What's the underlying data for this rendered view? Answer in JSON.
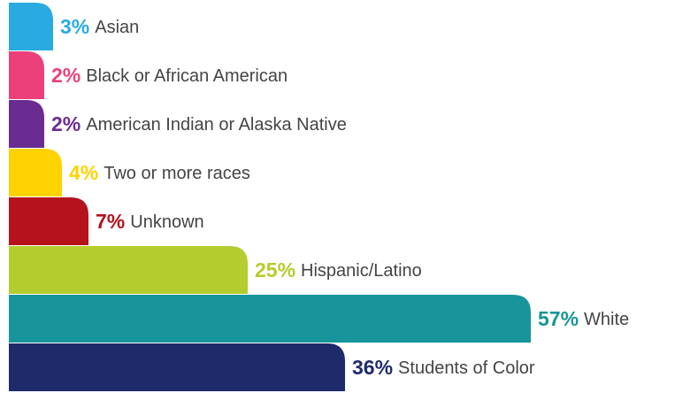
{
  "chart_data": {
    "type": "bar",
    "orientation": "horizontal",
    "categories": [
      "Asian",
      "Black or African American",
      "American Indian or Alaska Native",
      "Two or more races",
      "Unknown",
      "Hispanic/Latino",
      "White",
      "Students of Color"
    ],
    "values": [
      3,
      2,
      2,
      4,
      7,
      25,
      57,
      36
    ],
    "value_labels": [
      "3%",
      "2%",
      "2%",
      "4%",
      "7%",
      "25%",
      "57%",
      "36%"
    ],
    "colors": [
      "#29abe2",
      "#ec407a",
      "#6a2c91",
      "#ffd200",
      "#b5121b",
      "#b5cc2e",
      "#17959a",
      "#1f2a6b"
    ]
  }
}
